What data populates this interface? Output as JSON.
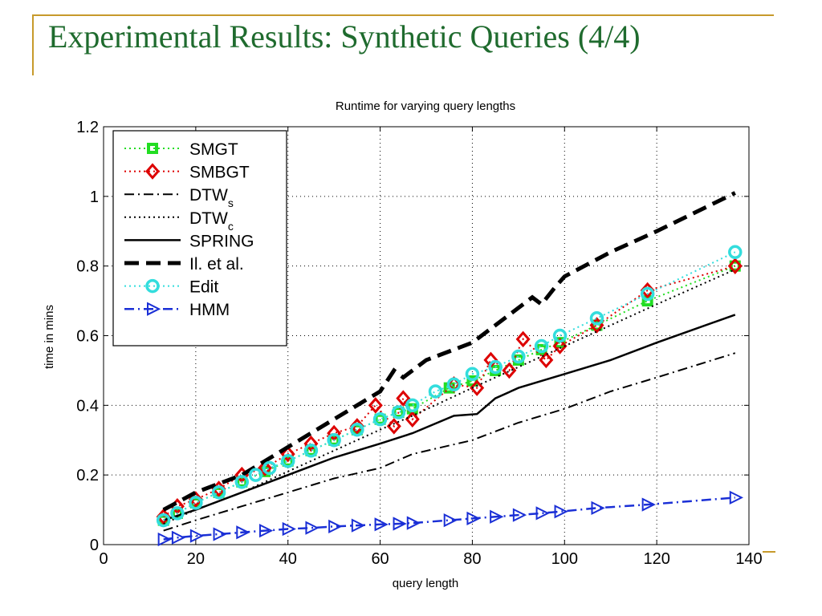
{
  "slide": {
    "title": "Experimental Results: Synthetic Queries (4/4)",
    "accent_color": "#c79a2c",
    "title_color": "#1f6b2e"
  },
  "chart_data": {
    "type": "line",
    "title": "Runtime for varying query lengths",
    "xlabel": "query length",
    "ylabel": "time in mins",
    "xlim": [
      0,
      140
    ],
    "ylim": [
      0,
      1.2
    ],
    "xticks": [
      0,
      20,
      40,
      60,
      80,
      100,
      120,
      140
    ],
    "yticks": [
      0,
      0.2,
      0.4,
      0.6,
      0.8,
      1,
      1.2
    ],
    "ytick_labels": [
      "0",
      "0.2",
      "0.4",
      "0.6",
      "0.8",
      "1",
      "1.2"
    ],
    "grid": true,
    "legend": "top-left",
    "series": [
      {
        "name": "SMGT",
        "sub": "",
        "color": "#22dd22",
        "style": "dotted",
        "marker": "square",
        "points": [
          [
            13,
            0.07
          ],
          [
            16,
            0.09
          ],
          [
            20,
            0.12
          ],
          [
            25,
            0.15
          ],
          [
            30,
            0.18
          ],
          [
            35,
            0.21
          ],
          [
            40,
            0.24
          ],
          [
            45,
            0.27
          ],
          [
            50,
            0.3
          ],
          [
            55,
            0.33
          ],
          [
            60,
            0.36
          ],
          [
            64,
            0.38
          ],
          [
            67,
            0.39
          ],
          [
            75,
            0.45
          ],
          [
            80,
            0.47
          ],
          [
            85,
            0.5
          ],
          [
            90,
            0.53
          ],
          [
            95,
            0.56
          ],
          [
            99,
            0.58
          ],
          [
            107,
            0.63
          ],
          [
            118,
            0.7
          ],
          [
            137,
            0.8
          ]
        ]
      },
      {
        "name": "SMBGT",
        "sub": "",
        "color": "#dd0000",
        "style": "dotted",
        "marker": "diamond",
        "points": [
          [
            13,
            0.08
          ],
          [
            16,
            0.11
          ],
          [
            20,
            0.13
          ],
          [
            25,
            0.16
          ],
          [
            30,
            0.2
          ],
          [
            35,
            0.22
          ],
          [
            40,
            0.26
          ],
          [
            45,
            0.29
          ],
          [
            50,
            0.32
          ],
          [
            55,
            0.34
          ],
          [
            59,
            0.4
          ],
          [
            63,
            0.34
          ],
          [
            65,
            0.42
          ],
          [
            67,
            0.36
          ],
          [
            76,
            0.46
          ],
          [
            81,
            0.45
          ],
          [
            84,
            0.53
          ],
          [
            88,
            0.5
          ],
          [
            91,
            0.59
          ],
          [
            96,
            0.53
          ],
          [
            99,
            0.57
          ],
          [
            107,
            0.63
          ],
          [
            118,
            0.73
          ],
          [
            137,
            0.8
          ]
        ]
      },
      {
        "name": "DTW",
        "sub": "s",
        "color": "#000000",
        "style": "dashdot",
        "marker": "none",
        "points": [
          [
            13,
            0.04
          ],
          [
            20,
            0.07
          ],
          [
            30,
            0.11
          ],
          [
            40,
            0.15
          ],
          [
            50,
            0.19
          ],
          [
            60,
            0.22
          ],
          [
            67,
            0.26
          ],
          [
            80,
            0.3
          ],
          [
            90,
            0.35
          ],
          [
            100,
            0.39
          ],
          [
            110,
            0.44
          ],
          [
            120,
            0.48
          ],
          [
            137,
            0.55
          ]
        ]
      },
      {
        "name": "DTW",
        "sub": "c",
        "color": "#000000",
        "style": "dotted",
        "marker": "none",
        "points": [
          [
            13,
            0.06
          ],
          [
            20,
            0.1
          ],
          [
            30,
            0.15
          ],
          [
            40,
            0.21
          ],
          [
            50,
            0.27
          ],
          [
            60,
            0.33
          ],
          [
            67,
            0.37
          ],
          [
            80,
            0.45
          ],
          [
            90,
            0.51
          ],
          [
            100,
            0.57
          ],
          [
            110,
            0.63
          ],
          [
            120,
            0.69
          ],
          [
            137,
            0.79
          ]
        ]
      },
      {
        "name": "SPRING",
        "sub": "",
        "color": "#000000",
        "style": "solid",
        "marker": "none",
        "points": [
          [
            13,
            0.07
          ],
          [
            20,
            0.1
          ],
          [
            30,
            0.15
          ],
          [
            40,
            0.2
          ],
          [
            50,
            0.25
          ],
          [
            60,
            0.29
          ],
          [
            67,
            0.32
          ],
          [
            76,
            0.37
          ],
          [
            81,
            0.375
          ],
          [
            85,
            0.42
          ],
          [
            90,
            0.45
          ],
          [
            100,
            0.49
          ],
          [
            110,
            0.53
          ],
          [
            120,
            0.58
          ],
          [
            137,
            0.66
          ]
        ]
      },
      {
        "name": "Il. et al.",
        "sub": "",
        "color": "#000000",
        "style": "dashed",
        "marker": "none",
        "points": [
          [
            13,
            0.1
          ],
          [
            20,
            0.15
          ],
          [
            30,
            0.2
          ],
          [
            40,
            0.28
          ],
          [
            50,
            0.36
          ],
          [
            55,
            0.4
          ],
          [
            60,
            0.44
          ],
          [
            63,
            0.5
          ],
          [
            65,
            0.48
          ],
          [
            70,
            0.53
          ],
          [
            80,
            0.58
          ],
          [
            90,
            0.68
          ],
          [
            93,
            0.71
          ],
          [
            95,
            0.69
          ],
          [
            98,
            0.74
          ],
          [
            100,
            0.77
          ],
          [
            110,
            0.84
          ],
          [
            120,
            0.9
          ],
          [
            137,
            1.01
          ]
        ]
      },
      {
        "name": "Edit",
        "sub": "",
        "color": "#33dddd",
        "style": "dotted",
        "marker": "circle",
        "points": [
          [
            13,
            0.07
          ],
          [
            16,
            0.09
          ],
          [
            20,
            0.12
          ],
          [
            25,
            0.15
          ],
          [
            30,
            0.18
          ],
          [
            33,
            0.2
          ],
          [
            36,
            0.22
          ],
          [
            40,
            0.24
          ],
          [
            45,
            0.27
          ],
          [
            50,
            0.3
          ],
          [
            55,
            0.33
          ],
          [
            60,
            0.36
          ],
          [
            64,
            0.38
          ],
          [
            67,
            0.4
          ],
          [
            72,
            0.44
          ],
          [
            76,
            0.46
          ],
          [
            80,
            0.49
          ],
          [
            85,
            0.51
          ],
          [
            90,
            0.54
          ],
          [
            95,
            0.57
          ],
          [
            99,
            0.6
          ],
          [
            107,
            0.65
          ],
          [
            118,
            0.72
          ],
          [
            137,
            0.84
          ]
        ]
      },
      {
        "name": "HMM",
        "sub": "",
        "color": "#1a2fd6",
        "style": "dashdot",
        "marker": "triangle-right",
        "points": [
          [
            13,
            0.015
          ],
          [
            16,
            0.02
          ],
          [
            20,
            0.025
          ],
          [
            25,
            0.03
          ],
          [
            30,
            0.035
          ],
          [
            35,
            0.04
          ],
          [
            40,
            0.045
          ],
          [
            45,
            0.048
          ],
          [
            50,
            0.052
          ],
          [
            55,
            0.055
          ],
          [
            60,
            0.058
          ],
          [
            64,
            0.06
          ],
          [
            67,
            0.062
          ],
          [
            75,
            0.07
          ],
          [
            80,
            0.075
          ],
          [
            85,
            0.08
          ],
          [
            90,
            0.085
          ],
          [
            95,
            0.09
          ],
          [
            99,
            0.095
          ],
          [
            107,
            0.105
          ],
          [
            118,
            0.115
          ],
          [
            137,
            0.135
          ]
        ]
      }
    ]
  }
}
